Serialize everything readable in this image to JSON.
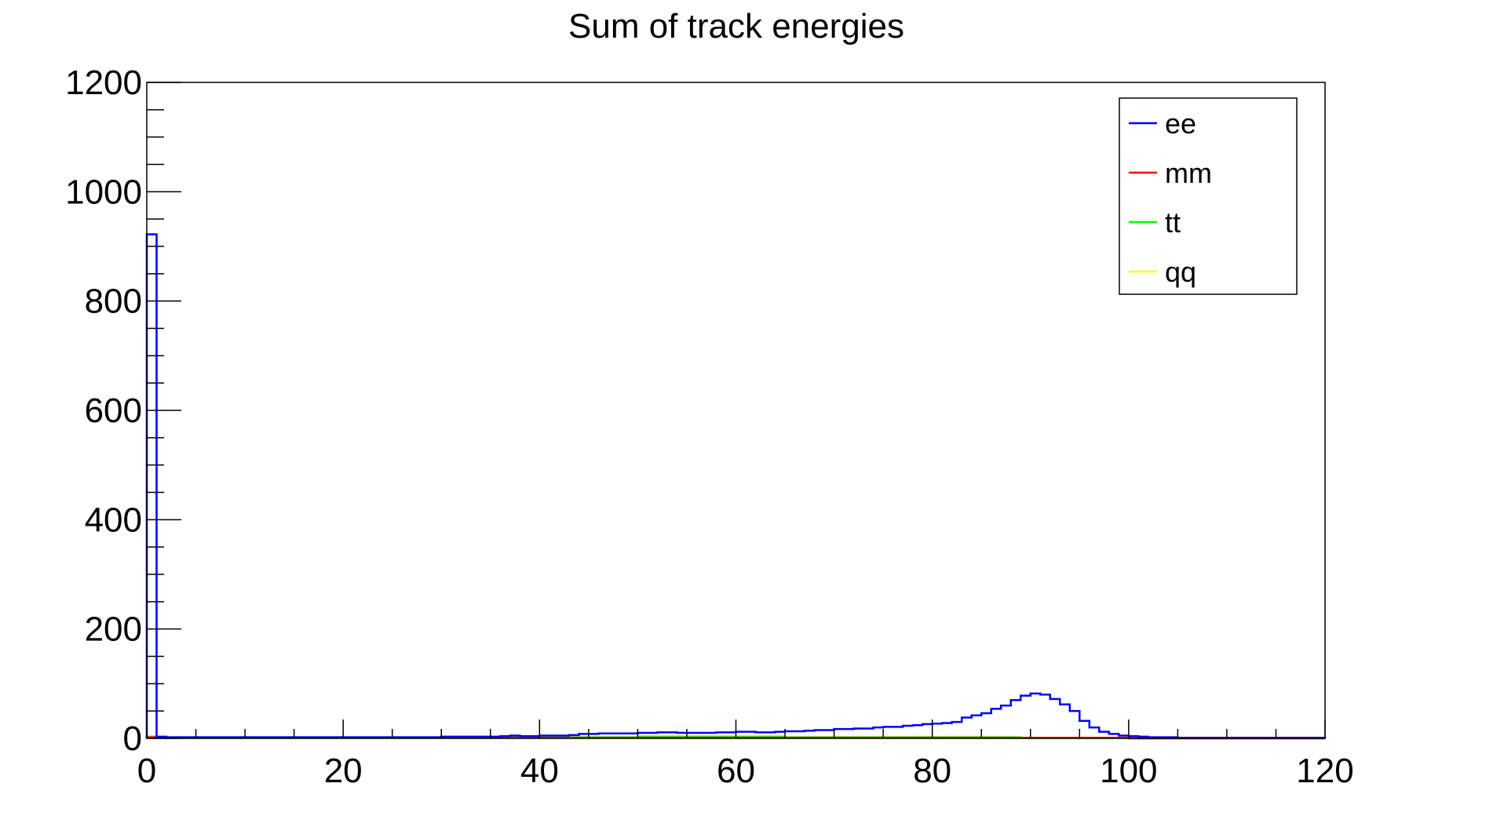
{
  "chart_data": {
    "type": "line",
    "title": "Sum of track energies",
    "xlabel": "",
    "ylabel": "",
    "xlim": [
      0,
      120
    ],
    "ylim": [
      0,
      1200
    ],
    "x_ticks": [
      0,
      20,
      40,
      60,
      80,
      100,
      120
    ],
    "y_ticks": [
      0,
      200,
      400,
      600,
      800,
      1000,
      1200
    ],
    "grid": false,
    "legend_position": "top-right",
    "bin_width": 1,
    "series": [
      {
        "name": "ee",
        "color": "#0000ff",
        "values": [
          922,
          3,
          2,
          2,
          2,
          2,
          2,
          2,
          2,
          2,
          2,
          2,
          2,
          2,
          2,
          2,
          2,
          2,
          2,
          2,
          2,
          2,
          2,
          2,
          2,
          2,
          2,
          2,
          2,
          2,
          3,
          3,
          3,
          3,
          3,
          3,
          4,
          5,
          4,
          4,
          5,
          5,
          5,
          6,
          8,
          8,
          9,
          9,
          9,
          9,
          10,
          10,
          11,
          11,
          10,
          10,
          10,
          10,
          11,
          11,
          12,
          12,
          11,
          11,
          12,
          13,
          13,
          14,
          15,
          15,
          17,
          17,
          18,
          18,
          20,
          21,
          21,
          23,
          24,
          26,
          27,
          28,
          30,
          38,
          42,
          46,
          54,
          60,
          70,
          78,
          82,
          80,
          72,
          62,
          50,
          32,
          20,
          12,
          8,
          5,
          4,
          3,
          2,
          2,
          2,
          1,
          1,
          1,
          1,
          1,
          1,
          1,
          1,
          1,
          1,
          1,
          1,
          1,
          1,
          1
        ]
      },
      {
        "name": "mm",
        "color": "#ff0000",
        "values": [
          2,
          1,
          1,
          1,
          1,
          1,
          1,
          1,
          1,
          1,
          1,
          1,
          1,
          1,
          1,
          1,
          1,
          1,
          1,
          1,
          1,
          1,
          1,
          1,
          1,
          1,
          1,
          1,
          1,
          1,
          1,
          1,
          1,
          1,
          1,
          1,
          1,
          1,
          1,
          1,
          1,
          1,
          1,
          1,
          1,
          1,
          1,
          1,
          1,
          1,
          1,
          1,
          1,
          1,
          1,
          1,
          1,
          1,
          1,
          1,
          1,
          1,
          1,
          1,
          1,
          1,
          1,
          1,
          1,
          1,
          1,
          1,
          1,
          1,
          1,
          1,
          1,
          1,
          1,
          1,
          1,
          1,
          1,
          1,
          1,
          1,
          1,
          1,
          1,
          1,
          1,
          1,
          1,
          1,
          1,
          1,
          1,
          1,
          1,
          1,
          0,
          0,
          0,
          0,
          0,
          0,
          0,
          0,
          0,
          0,
          0,
          0,
          0,
          0,
          0,
          0,
          0,
          0,
          0,
          0
        ]
      },
      {
        "name": "tt",
        "color": "#00ff00",
        "values": [
          3,
          2,
          2,
          2,
          2,
          2,
          2,
          2,
          2,
          2,
          2,
          2,
          2,
          2,
          2,
          2,
          2,
          2,
          2,
          2,
          2,
          2,
          2,
          2,
          2,
          2,
          2,
          2,
          2,
          2,
          2,
          2,
          2,
          2,
          2,
          2,
          2,
          2,
          2,
          2,
          2,
          2,
          2,
          2,
          2,
          2,
          2,
          2,
          2,
          2,
          3,
          3,
          3,
          3,
          3,
          3,
          3,
          3,
          3,
          3,
          3,
          3,
          3,
          3,
          3,
          2,
          2,
          2,
          2,
          2,
          2,
          2,
          2,
          2,
          2,
          2,
          2,
          2,
          2,
          2,
          2,
          2,
          2,
          2,
          2,
          2,
          2,
          2,
          2,
          1,
          1,
          1,
          1,
          1,
          1,
          1,
          1,
          1,
          1,
          1,
          0,
          0,
          0,
          0,
          0,
          0,
          0,
          0,
          0,
          0,
          0,
          0,
          0,
          0,
          0,
          0,
          0,
          0,
          0,
          0
        ]
      },
      {
        "name": "qq",
        "color": "#ffff00",
        "values": [
          1,
          0,
          0,
          0,
          0,
          0,
          0,
          0,
          0,
          0,
          0,
          0,
          0,
          0,
          0,
          0,
          0,
          0,
          0,
          0,
          0,
          0,
          0,
          0,
          0,
          0,
          0,
          0,
          0,
          0,
          0,
          0,
          0,
          0,
          0,
          0,
          0,
          0,
          0,
          0,
          0,
          0,
          0,
          0,
          0,
          0,
          0,
          0,
          0,
          0,
          0,
          0,
          0,
          0,
          0,
          0,
          0,
          0,
          0,
          0,
          0,
          0,
          0,
          0,
          0,
          0,
          0,
          0,
          0,
          0,
          0,
          0,
          0,
          0,
          0,
          0,
          0,
          0,
          0,
          0,
          0,
          0,
          0,
          0,
          0,
          0,
          0,
          0,
          0,
          0,
          0,
          0,
          0,
          0,
          0,
          0,
          0,
          0,
          0,
          0,
          0,
          0,
          0,
          0,
          0,
          0,
          0,
          0,
          0,
          0,
          0,
          0,
          0,
          0,
          0,
          0,
          0,
          0,
          0,
          0
        ]
      }
    ]
  }
}
